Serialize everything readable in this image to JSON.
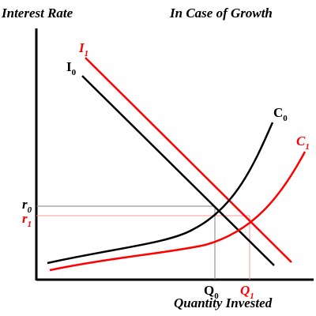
{
  "header": {
    "y_axis_title": "Interest Rate",
    "scenario_title": "In Case of Growth"
  },
  "x_axis_title": "Quantity Invested",
  "labels": {
    "i1": {
      "base": "I",
      "sub": "1"
    },
    "i0": {
      "base": "I",
      "sub": "0"
    },
    "c0": {
      "base": "C",
      "sub": "0"
    },
    "c1": {
      "base": "C",
      "sub": "1"
    },
    "r0": {
      "base": "r",
      "sub": "0"
    },
    "r1": {
      "base": "r",
      "sub": "1"
    },
    "q0": {
      "base": "Q",
      "sub": "0"
    },
    "q1": {
      "base": "Q",
      "sub": "1"
    }
  },
  "colors": {
    "original": "#000000",
    "shifted": "#ff0000",
    "guide_black": "#808080",
    "guide_red": "#ff9999"
  }
}
